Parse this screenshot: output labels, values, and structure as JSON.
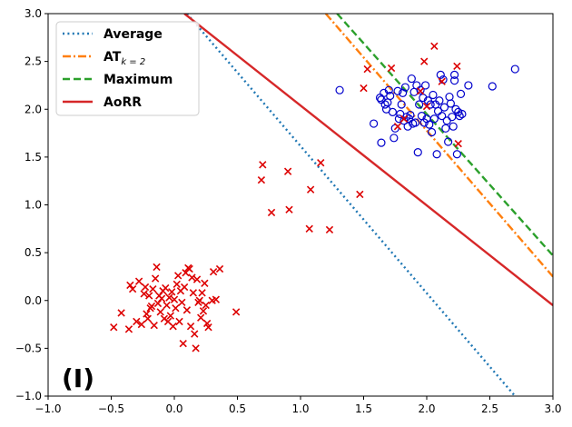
{
  "chart_data": {
    "type": "scatter",
    "panel_label": "(I)",
    "xlim": [
      -1.0,
      3.0
    ],
    "ylim": [
      -1.0,
      3.0
    ],
    "xticks": [
      -1.0,
      -0.5,
      0.0,
      0.5,
      1.0,
      1.5,
      2.0,
      2.5,
      3.0
    ],
    "yticks": [
      -1.0,
      -0.5,
      0.0,
      0.5,
      1.0,
      1.5,
      2.0,
      2.5,
      3.0
    ],
    "xtick_labels": [
      "−1.0",
      "−0.5",
      "0.0",
      "0.5",
      "1.0",
      "1.5",
      "2.0",
      "2.5",
      "3.0"
    ],
    "ytick_labels": [
      "−1.0",
      "−0.5",
      "0.0",
      "0.5",
      "1.0",
      "1.5",
      "2.0",
      "2.5",
      "3.0"
    ],
    "grid": false,
    "legend_position": "top-left",
    "lines": [
      {
        "name": "Average",
        "sub": "",
        "color": "#1f77b4",
        "style": "dotted",
        "points": [
          [
            0.1,
            3.0
          ],
          [
            2.7,
            -1.0
          ]
        ]
      },
      {
        "name": "AT",
        "sub": "k = 2",
        "color": "#ff7f0e",
        "style": "dashdot",
        "points": [
          [
            1.2,
            3.0
          ],
          [
            3.0,
            0.25
          ]
        ]
      },
      {
        "name": "Maximum",
        "sub": "",
        "color": "#2ca02c",
        "style": "dashed",
        "points": [
          [
            1.29,
            3.0
          ],
          [
            3.0,
            0.47
          ]
        ]
      },
      {
        "name": "AoRR",
        "sub": "",
        "color": "#d62728",
        "style": "solid",
        "points": [
          [
            0.08,
            3.0
          ],
          [
            3.0,
            -0.05
          ]
        ]
      }
    ],
    "positive_class": {
      "marker": "circle",
      "color": "#0000cc",
      "points": [
        [
          1.31,
          2.2
        ],
        [
          1.58,
          1.85
        ],
        [
          1.63,
          2.12
        ],
        [
          1.64,
          2.1
        ],
        [
          1.64,
          1.65
        ],
        [
          1.66,
          2.17
        ],
        [
          1.67,
          2.05
        ],
        [
          1.68,
          2.0
        ],
        [
          1.69,
          2.07
        ],
        [
          1.7,
          2.2
        ],
        [
          1.71,
          2.14
        ],
        [
          1.73,
          1.97
        ],
        [
          1.74,
          1.7
        ],
        [
          1.75,
          1.8
        ],
        [
          1.77,
          2.19
        ],
        [
          1.78,
          1.9
        ],
        [
          1.79,
          1.95
        ],
        [
          1.8,
          2.05
        ],
        [
          1.81,
          2.17
        ],
        [
          1.82,
          1.88
        ],
        [
          1.83,
          2.23
        ],
        [
          1.84,
          1.92
        ],
        [
          1.85,
          1.82
        ],
        [
          1.86,
          1.9
        ],
        [
          1.87,
          1.94
        ],
        [
          1.88,
          2.32
        ],
        [
          1.89,
          1.85
        ],
        [
          1.9,
          2.18
        ],
        [
          1.91,
          1.86
        ],
        [
          1.92,
          2.25
        ],
        [
          1.93,
          1.55
        ],
        [
          1.94,
          2.05
        ],
        [
          1.95,
          2.2
        ],
        [
          1.96,
          1.93
        ],
        [
          1.97,
          2.12
        ],
        [
          1.98,
          1.86
        ],
        [
          1.99,
          2.25
        ],
        [
          2.0,
          1.9
        ],
        [
          2.01,
          2.09
        ],
        [
          2.02,
          1.84
        ],
        [
          2.03,
          2.05
        ],
        [
          2.04,
          1.76
        ],
        [
          2.05,
          2.15
        ],
        [
          2.06,
          1.9
        ],
        [
          2.07,
          2.05
        ],
        [
          2.08,
          1.53
        ],
        [
          2.09,
          1.98
        ],
        [
          2.1,
          2.09
        ],
        [
          2.11,
          2.36
        ],
        [
          2.12,
          1.93
        ],
        [
          2.13,
          2.31
        ],
        [
          2.14,
          2.02
        ],
        [
          2.15,
          1.8
        ],
        [
          2.16,
          1.88
        ],
        [
          2.17,
          1.66
        ],
        [
          2.18,
          2.13
        ],
        [
          2.19,
          2.06
        ],
        [
          2.2,
          1.92
        ],
        [
          2.21,
          1.82
        ],
        [
          2.22,
          2.3
        ],
        [
          2.23,
          2.0
        ],
        [
          2.24,
          1.53
        ],
        [
          2.25,
          1.97
        ],
        [
          2.26,
          1.93
        ],
        [
          2.27,
          2.16
        ],
        [
          2.28,
          1.95
        ],
        [
          2.33,
          2.25
        ],
        [
          2.52,
          2.24
        ],
        [
          2.7,
          2.42
        ],
        [
          2.22,
          2.36
        ]
      ]
    },
    "negative_class": {
      "marker": "x",
      "color": "#dd0000",
      "points": [
        [
          -0.48,
          -0.28
        ],
        [
          -0.42,
          -0.13
        ],
        [
          -0.36,
          -0.3
        ],
        [
          -0.35,
          0.16
        ],
        [
          -0.33,
          0.12
        ],
        [
          -0.3,
          -0.22
        ],
        [
          -0.28,
          0.2
        ],
        [
          -0.26,
          -0.25
        ],
        [
          -0.24,
          0.07
        ],
        [
          -0.23,
          0.14
        ],
        [
          -0.22,
          -0.14
        ],
        [
          -0.21,
          -0.19
        ],
        [
          -0.2,
          0.05
        ],
        [
          -0.19,
          -0.08
        ],
        [
          -0.18,
          -0.06
        ],
        [
          -0.17,
          0.12
        ],
        [
          -0.16,
          -0.26
        ],
        [
          -0.15,
          0.23
        ],
        [
          -0.14,
          0.35
        ],
        [
          -0.13,
          -0.03
        ],
        [
          -0.12,
          0.05
        ],
        [
          -0.11,
          -0.12
        ],
        [
          -0.1,
          0.02
        ],
        [
          -0.09,
          0.1
        ],
        [
          -0.08,
          -0.19
        ],
        [
          -0.07,
          0.13
        ],
        [
          -0.06,
          -0.05
        ],
        [
          -0.05,
          -0.22
        ],
        [
          -0.04,
          0.03
        ],
        [
          -0.03,
          -0.16
        ],
        [
          -0.02,
          0.09
        ],
        [
          -0.01,
          -0.27
        ],
        [
          0.0,
          0.01
        ],
        [
          0.01,
          -0.08
        ],
        [
          0.02,
          0.17
        ],
        [
          0.03,
          0.26
        ],
        [
          0.04,
          -0.22
        ],
        [
          0.05,
          0.1
        ],
        [
          0.06,
          -0.02
        ],
        [
          0.07,
          -0.45
        ],
        [
          0.08,
          0.14
        ],
        [
          0.09,
          0.29
        ],
        [
          0.1,
          -0.1
        ],
        [
          0.11,
          0.34
        ],
        [
          0.12,
          0.33
        ],
        [
          0.13,
          -0.27
        ],
        [
          0.14,
          0.24
        ],
        [
          0.15,
          0.08
        ],
        [
          0.16,
          -0.35
        ],
        [
          0.17,
          -0.5
        ],
        [
          0.18,
          0.22
        ],
        [
          0.19,
          -0.02
        ],
        [
          0.2,
          0.0
        ],
        [
          0.21,
          -0.18
        ],
        [
          0.22,
          0.08
        ],
        [
          0.23,
          -0.11
        ],
        [
          0.24,
          0.18
        ],
        [
          0.25,
          -0.05
        ],
        [
          0.26,
          -0.24
        ],
        [
          0.27,
          -0.28
        ],
        [
          0.3,
          0.0
        ],
        [
          0.31,
          0.3
        ],
        [
          0.33,
          0.01
        ],
        [
          0.36,
          0.33
        ],
        [
          0.49,
          -0.12
        ],
        [
          0.7,
          1.42
        ],
        [
          0.69,
          1.26
        ],
        [
          0.77,
          0.92
        ],
        [
          0.9,
          1.35
        ],
        [
          0.91,
          0.95
        ],
        [
          1.08,
          1.16
        ],
        [
          1.07,
          0.75
        ],
        [
          1.16,
          1.44
        ],
        [
          1.23,
          0.74
        ],
        [
          1.47,
          1.11
        ],
        [
          1.53,
          2.42
        ],
        [
          1.5,
          2.22
        ],
        [
          1.72,
          2.43
        ],
        [
          1.77,
          1.82
        ],
        [
          1.82,
          1.9
        ],
        [
          1.95,
          2.19
        ],
        [
          1.98,
          2.5
        ],
        [
          2.06,
          2.66
        ],
        [
          2.12,
          2.29
        ],
        [
          2.24,
          2.45
        ],
        [
          2.25,
          1.64
        ],
        [
          2.0,
          2.03
        ]
      ]
    }
  }
}
